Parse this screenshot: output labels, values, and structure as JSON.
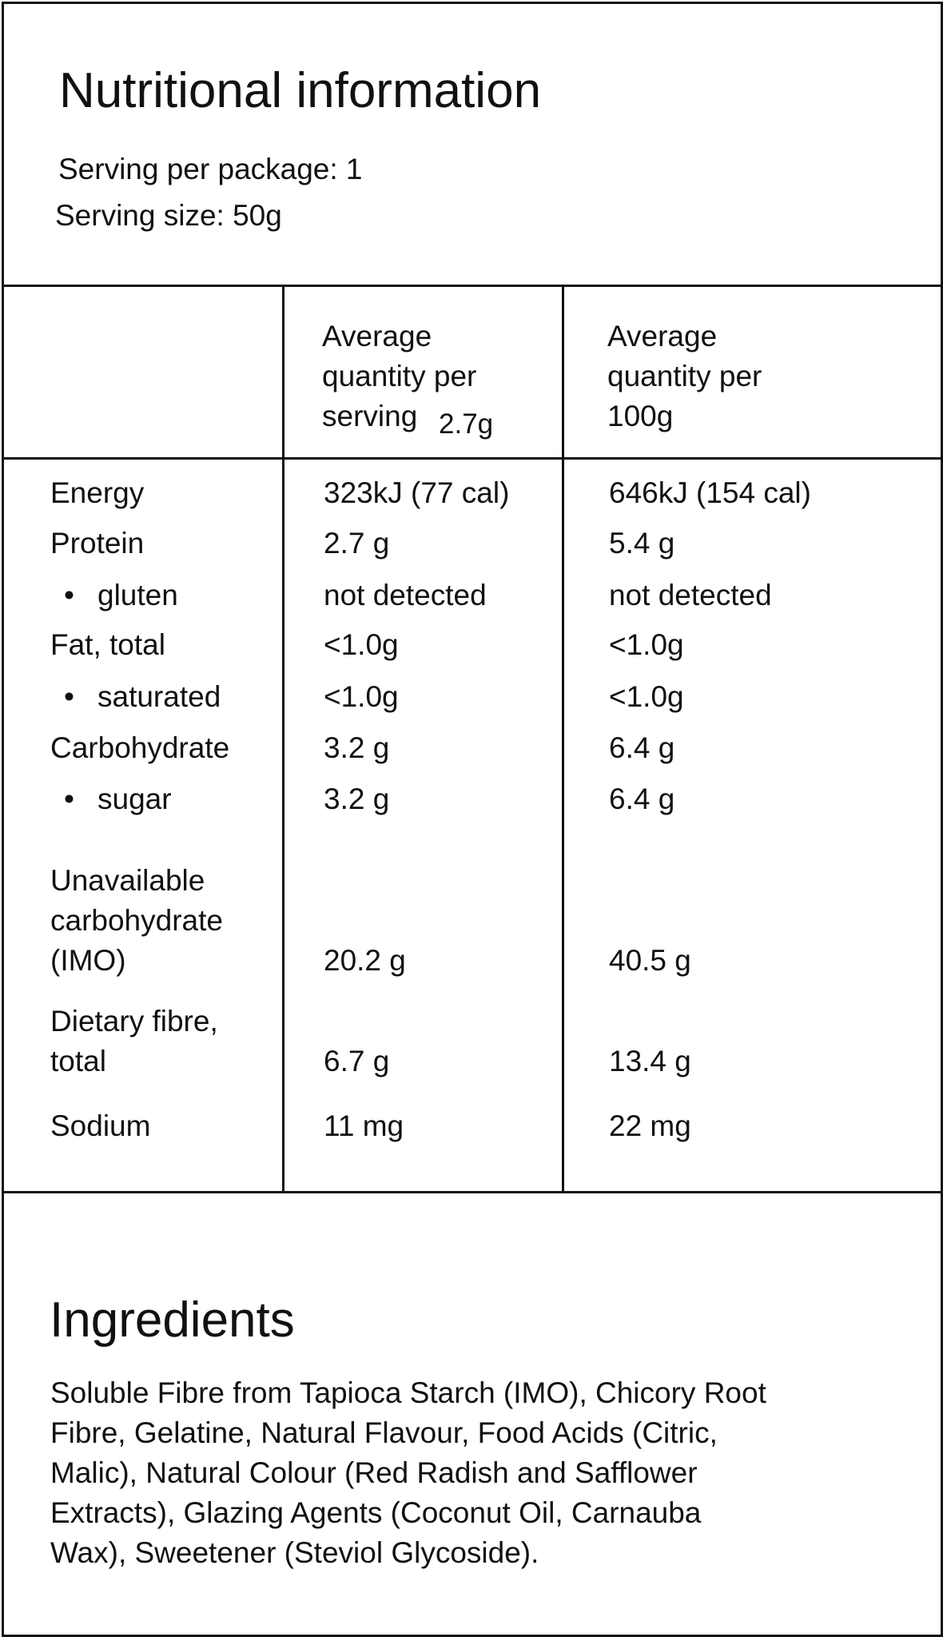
{
  "header": {
    "title": "Nutritional information",
    "serving_per_package": "Serving per package: 1",
    "serving_size": "Serving size: 50g"
  },
  "table": {
    "columns": [
      {
        "lines": [
          "Average",
          "quantity per",
          "serving"
        ],
        "note": "2.7g"
      },
      {
        "lines": [
          "Average",
          "quantity per",
          "100g"
        ]
      }
    ],
    "rows": [
      [
        "Energy",
        "323kJ (77 cal)",
        "646kJ (154 cal)"
      ],
      [
        "Protein",
        "2.7 g",
        "5.4 g"
      ],
      [
        "gluten",
        "not detected",
        "not detected"
      ],
      [
        "Fat, total",
        "<1.0g",
        "<1.0g"
      ],
      [
        "saturated",
        "<1.0g",
        "<1.0g"
      ],
      [
        "Carbohydrate",
        "3.2 g",
        "6.4 g"
      ],
      [
        "sugar",
        "3.2 g",
        "6.4 g"
      ],
      [
        "Unavailable carbohydrate (IMO)",
        "20.2 g",
        "40.5 g"
      ],
      [
        "Dietary fibre, total",
        "6.7 g",
        "13.4 g"
      ],
      [
        "Sodium",
        "11 mg",
        "22 mg"
      ]
    ]
  },
  "ingredients": {
    "title": "Ingredients",
    "lines": [
      "Soluble Fibre from Tapioca Starch (IMO), Chicory Root",
      "Fibre, Gelatine, Natural Flavour, Food Acids (Citric,",
      "Malic), Natural Colour (Red Radish and Safflower",
      "Extracts), Glazing Agents (Coconut Oil, Carnauba",
      "Wax), Sweetener (Steviol Glycoside)."
    ]
  }
}
